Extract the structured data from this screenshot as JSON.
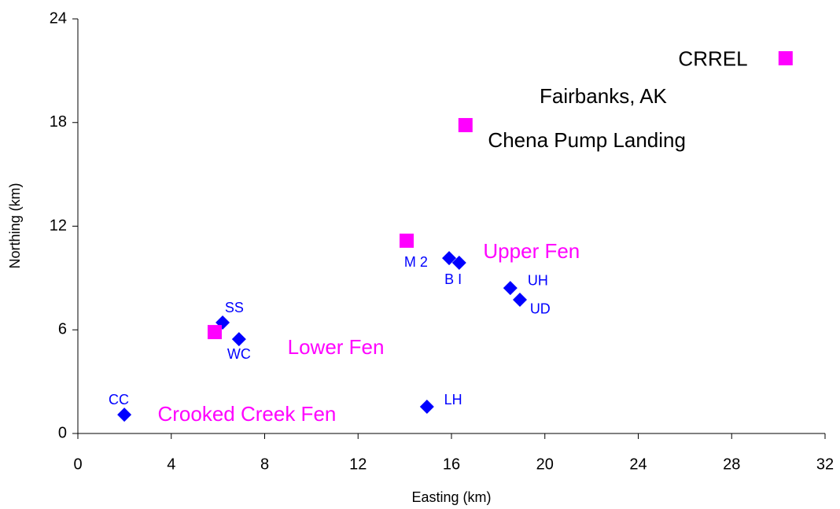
{
  "chart_data": {
    "type": "scatter",
    "x_label": "Easting (km)",
    "y_label": "Northing (km)",
    "xlim": [
      0,
      32
    ],
    "ylim": [
      0,
      24
    ],
    "xticks": [
      0,
      4,
      8,
      12,
      16,
      20,
      24,
      28,
      32
    ],
    "yticks": [
      0,
      6,
      12,
      18,
      24
    ],
    "grid": false,
    "series": [
      {
        "color": "#0000ff",
        "marker": "diamond",
        "x": [
          1.99,
          6.2,
          6.9,
          15.9,
          16.33,
          18.52,
          18.93,
          14.95
        ],
        "values": [
          1.09,
          6.42,
          5.46,
          10.15,
          9.88,
          8.42,
          7.74,
          1.55
        ]
      },
      {
        "color": "#ff00ff",
        "marker": "square",
        "x": [
          5.86,
          14.08,
          16.6,
          30.31
        ],
        "values": [
          5.87,
          11.16,
          17.85,
          21.72
        ]
      }
    ],
    "annotations": [
      {
        "text": "CRREL",
        "x": 27.2,
        "y": 21.6,
        "color": "#000000",
        "size": "large"
      },
      {
        "text": "Fairbanks, AK",
        "x": 22.5,
        "y": 19.45,
        "color": "#000000",
        "size": "large"
      },
      {
        "text": "Chena Pump Landing",
        "x": 21.8,
        "y": 16.9,
        "color": "#000000",
        "size": "large"
      },
      {
        "text": "Upper Fen",
        "x": 19.43,
        "y": 10.47,
        "color": "#ff00ff",
        "size": "large"
      },
      {
        "text": "Lower Fen",
        "x": 11.05,
        "y": 4.92,
        "color": "#ff00ff",
        "size": "large"
      },
      {
        "text": "Crooked Creek Fen",
        "x": 7.24,
        "y": 1.05,
        "color": "#ff00ff",
        "size": "large"
      },
      {
        "text": "CC",
        "x": 1.75,
        "y": 1.91,
        "color": "#0000ff",
        "size": "small"
      },
      {
        "text": "SS",
        "x": 6.7,
        "y": 7.24,
        "color": "#0000ff",
        "size": "small"
      },
      {
        "text": "WC",
        "x": 6.9,
        "y": 4.55,
        "color": "#0000ff",
        "size": "small"
      },
      {
        "text": "M 2",
        "x": 14.48,
        "y": 9.88,
        "color": "#0000ff",
        "size": "small"
      },
      {
        "text": "B I",
        "x": 16.07,
        "y": 8.88,
        "color": "#0000ff",
        "size": "small"
      },
      {
        "text": "UH",
        "x": 19.7,
        "y": 8.79,
        "color": "#0000ff",
        "size": "small"
      },
      {
        "text": "UD",
        "x": 19.8,
        "y": 7.15,
        "color": "#0000ff",
        "size": "small"
      },
      {
        "text": "LH",
        "x": 16.07,
        "y": 1.91,
        "color": "#0000ff",
        "size": "small"
      }
    ]
  }
}
